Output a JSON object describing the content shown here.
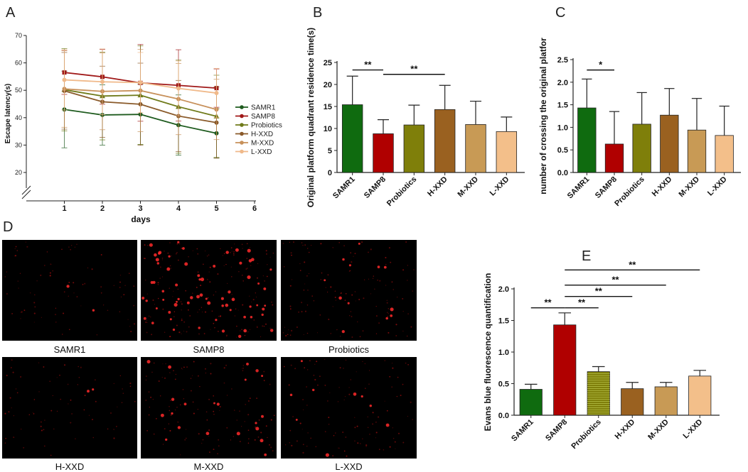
{
  "panels": {
    "A": "A",
    "B": "B",
    "C": "C",
    "D": "D",
    "E": "E"
  },
  "colors": {
    "SAMR1": "#0f6b0f",
    "SAMP8": "#b00000",
    "Probiotics": "#7f7f0a",
    "H-XXD": "#9a6120",
    "M-XXD": "#c89a55",
    "L-XXD": "#f3bf8a",
    "lineA": [
      "#1e5b1e",
      "#a01818",
      "#6f7a1a",
      "#8a5a2a",
      "#c7905a",
      "#f0b98a"
    ]
  },
  "chart_data": [
    {
      "id": "A",
      "type": "line",
      "xlabel": "days",
      "ylabel": "Escape latency(s)",
      "x": [
        1,
        2,
        3,
        4,
        5
      ],
      "xticks": [
        1,
        2,
        3,
        4,
        5,
        6
      ],
      "yticks": [
        20,
        30,
        40,
        50,
        60,
        70
      ],
      "ylim": [
        20,
        70
      ],
      "series": [
        {
          "name": "SAMR1",
          "values": [
            43,
            41,
            41.2,
            37.3,
            34.3
          ],
          "err": [
            14,
            11,
            11,
            11,
            9
          ]
        },
        {
          "name": "SAMP8",
          "values": [
            56.5,
            54.9,
            52.7,
            51.8,
            50.8
          ],
          "err": [
            8,
            10,
            14,
            13,
            7
          ]
        },
        {
          "name": "Probiotics",
          "values": [
            50.2,
            47.9,
            48.2,
            44,
            40.5
          ],
          "err": [
            15,
            16,
            18,
            17,
            15
          ]
        },
        {
          "name": "H-XXD",
          "values": [
            49.8,
            45.8,
            44.9,
            40.6,
            38.2
          ],
          "err": [
            14,
            13,
            15,
            13,
            13
          ]
        },
        {
          "name": "M-XXD",
          "values": [
            50.5,
            49.6,
            49.9,
            46.8,
            43
          ],
          "err": [
            14,
            14,
            15,
            13,
            11
          ]
        },
        {
          "name": "L-XXD",
          "values": [
            53.8,
            53.1,
            52.8,
            50.7,
            49
          ],
          "err": [
            11,
            12,
            11,
            10,
            9
          ]
        }
      ]
    },
    {
      "id": "B",
      "type": "bar",
      "ylabel": "Original platform quadrant residence time(s)",
      "categories": [
        "SAMR1",
        "SAMP8",
        "Probiotics",
        "H-XXD",
        "M-XXD",
        "L-XXD"
      ],
      "values": [
        15.4,
        8.8,
        10.8,
        14.3,
        10.9,
        9.3
      ],
      "errors": [
        6.5,
        3.2,
        4.5,
        5.5,
        5.3,
        3.3
      ],
      "yticks": [
        0,
        5,
        10,
        15,
        20,
        25
      ],
      "ylim": [
        0,
        25
      ],
      "significance": [
        {
          "label": "**",
          "from": "SAMR1",
          "to": "SAMP8",
          "y": 23.3
        },
        {
          "label": "**",
          "from": "SAMP8",
          "to": "H-XXD",
          "y": 22.3
        }
      ]
    },
    {
      "id": "C",
      "type": "bar",
      "ylabel": "number of crossing the original platfor",
      "categories": [
        "SAMR1",
        "SAMP8",
        "Probiotics",
        "H-XXD",
        "M-XXD",
        "L-XXD"
      ],
      "values": [
        1.43,
        0.63,
        1.07,
        1.27,
        0.94,
        0.82
      ],
      "errors": [
        0.64,
        0.72,
        0.7,
        0.59,
        0.7,
        0.65
      ],
      "yticks": [
        0,
        0.5,
        1.0,
        1.5,
        2.0,
        2.5
      ],
      "ytick_labels": [
        "0.0",
        "0.5",
        "1.0",
        "1.5",
        "2.0",
        "2.5"
      ],
      "ylim": [
        0,
        2.5
      ],
      "significance": [
        {
          "label": "*",
          "from": "SAMR1",
          "to": "SAMP8",
          "y": 2.27
        }
      ]
    },
    {
      "id": "E",
      "type": "bar",
      "ylabel": "Evans blue fluorescence quantification",
      "categories": [
        "SAMR1",
        "SAMP8",
        "Probiotics",
        "H-XXD",
        "M-XXD",
        "L-XXD"
      ],
      "values": [
        0.41,
        1.43,
        0.69,
        0.42,
        0.45,
        0.62
      ],
      "errors": [
        0.08,
        0.19,
        0.08,
        0.1,
        0.07,
        0.09
      ],
      "yticks": [
        0,
        0.5,
        1.0,
        1.5,
        2.0
      ],
      "ytick_labels": [
        "0.0",
        "0.5",
        "1.0",
        "1.5",
        "2.0"
      ],
      "ylim": [
        0,
        2.0
      ],
      "significance": [
        {
          "label": "**",
          "from": "SAMR1",
          "to": "SAMP8",
          "y": 1.7
        },
        {
          "label": "**",
          "from": "SAMP8",
          "to": "Probiotics",
          "y": 1.7
        },
        {
          "label": "**",
          "from": "SAMP8",
          "to": "H-XXD",
          "y": 1.88
        },
        {
          "label": "**",
          "from": "SAMP8",
          "to": "M-XXD",
          "y": 2.06
        },
        {
          "label": "**",
          "from": "SAMP8",
          "to": "L-XXD",
          "y": 2.3
        }
      ]
    }
  ],
  "micrographs": [
    {
      "label": "SAMR1",
      "density": 0.18
    },
    {
      "label": "SAMP8",
      "density": 0.9
    },
    {
      "label": "Probiotics",
      "density": 0.45
    },
    {
      "label": "H-XXD",
      "density": 0.15
    },
    {
      "label": "M-XXD",
      "density": 0.45
    },
    {
      "label": "L-XXD",
      "density": 0.35
    }
  ]
}
